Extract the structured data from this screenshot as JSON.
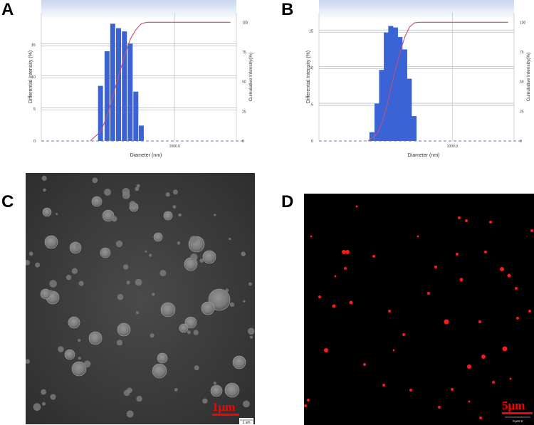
{
  "panels": {
    "a": "A",
    "b": "B",
    "c": "C",
    "d": "D"
  },
  "chart_data": [
    {
      "type": "bar",
      "panel": "A",
      "xlabel": "Diameter (nm)",
      "ylabel": "Differential Intensity (%)",
      "y2label": "Cumulative Intensity(%)",
      "x_scale": "log",
      "x_tick_labels": [
        {
          "value": 1000,
          "label": "1000.0"
        }
      ],
      "y_ticks": [
        0,
        5,
        10,
        15
      ],
      "y2_ticks": [
        0,
        25,
        50,
        75,
        100
      ],
      "ylim": [
        0,
        20
      ],
      "y2lim": [
        0,
        108
      ],
      "bars": [
        {
          "x": 190,
          "y": 8.6
        },
        {
          "x": 220,
          "y": 14.0
        },
        {
          "x": 250,
          "y": 18.3
        },
        {
          "x": 285,
          "y": 17.6
        },
        {
          "x": 325,
          "y": 17.1
        },
        {
          "x": 370,
          "y": 15.2
        },
        {
          "x": 420,
          "y": 7.7
        },
        {
          "x": 475,
          "y": 2.4
        }
      ],
      "cumulative_line": [
        {
          "x": 150,
          "y": 0
        },
        {
          "x": 190,
          "y": 8
        },
        {
          "x": 220,
          "y": 21
        },
        {
          "x": 250,
          "y": 38
        },
        {
          "x": 285,
          "y": 55
        },
        {
          "x": 325,
          "y": 72
        },
        {
          "x": 370,
          "y": 86
        },
        {
          "x": 420,
          "y": 94
        },
        {
          "x": 475,
          "y": 99
        },
        {
          "x": 540,
          "y": 100
        },
        {
          "x": 3500,
          "y": 100
        }
      ],
      "baseline_color": "#5b7db1",
      "bar_color": "#3a64d6",
      "line_color": "#c0507a"
    },
    {
      "type": "bar",
      "panel": "B",
      "xlabel": "Diameter (nm)",
      "ylabel": "Differential Intensity (%)",
      "y2label": "Cumulative Intensity(%)",
      "x_scale": "log",
      "x_tick_labels": [
        {
          "value": 1000,
          "label": "1000.0"
        }
      ],
      "y_ticks": [
        0,
        5,
        10,
        15
      ],
      "y2_ticks": [
        0,
        25,
        50,
        75,
        100
      ],
      "ylim": [
        0,
        17.5
      ],
      "y2lim": [
        0,
        108
      ],
      "bars": [
        {
          "x": 165,
          "y": 1.2
        },
        {
          "x": 185,
          "y": 5.1
        },
        {
          "x": 205,
          "y": 9.7
        },
        {
          "x": 228,
          "y": 14.8
        },
        {
          "x": 252,
          "y": 15.7
        },
        {
          "x": 280,
          "y": 15.5
        },
        {
          "x": 310,
          "y": 14.2
        },
        {
          "x": 345,
          "y": 12.5
        },
        {
          "x": 382,
          "y": 8.5
        },
        {
          "x": 425,
          "y": 3.4
        }
      ],
      "cumulative_line": [
        {
          "x": 150,
          "y": 0
        },
        {
          "x": 185,
          "y": 6
        },
        {
          "x": 205,
          "y": 15
        },
        {
          "x": 228,
          "y": 28
        },
        {
          "x": 252,
          "y": 45
        },
        {
          "x": 280,
          "y": 61
        },
        {
          "x": 310,
          "y": 75
        },
        {
          "x": 345,
          "y": 88
        },
        {
          "x": 382,
          "y": 96
        },
        {
          "x": 425,
          "y": 99.5
        },
        {
          "x": 470,
          "y": 100
        },
        {
          "x": 3500,
          "y": 100
        }
      ],
      "baseline_color": "#5b7db1",
      "bar_color": "#3a64d6",
      "line_color": "#c0507a"
    }
  ],
  "micrographs": {
    "c": {
      "scale_label": "1μm",
      "scale_small_label": "1 um",
      "background": "#3b3b3b",
      "label_color": "#ff0000"
    },
    "d": {
      "scale_label": "5μm",
      "scale_small_label": "0      μm      5",
      "background": "#000000",
      "dot_color": "#ff1a1a",
      "label_color": "#ff0000"
    }
  }
}
